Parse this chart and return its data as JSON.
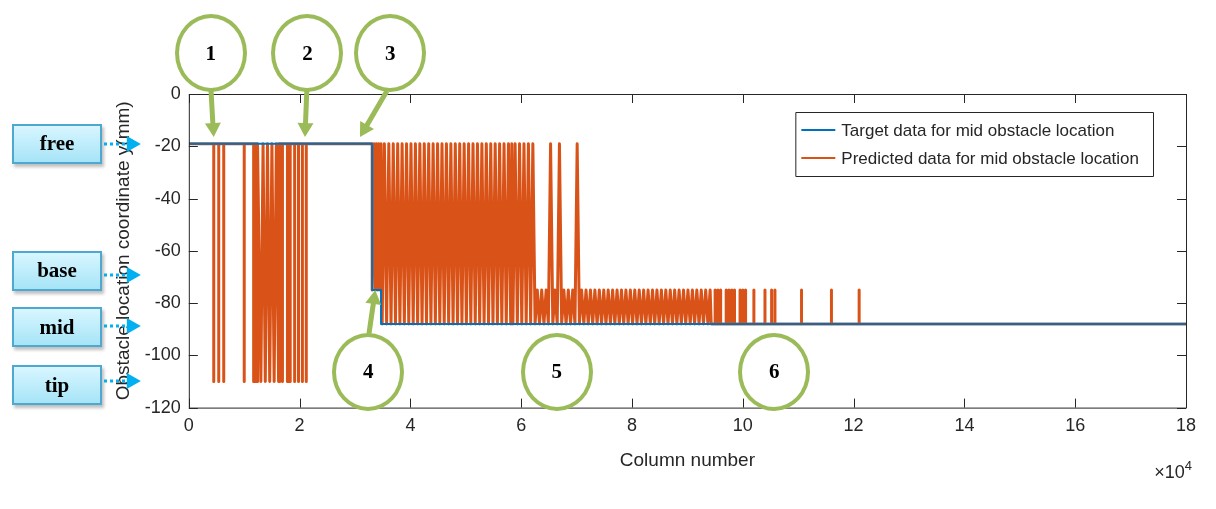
{
  "chart_data": {
    "type": "line",
    "xlabel": "Column number",
    "ylabel": "Obstacle location coordinate y(mm)",
    "xlim": [
      0,
      18
    ],
    "xticks": [
      0,
      2,
      4,
      6,
      8,
      10,
      12,
      14,
      16,
      18
    ],
    "ylim": [
      -120,
      0
    ],
    "yticks": [
      -120,
      -100,
      -80,
      -60,
      -40,
      -20,
      0
    ],
    "legend": "top right",
    "series": [
      {
        "name": "Target data for mid obstacle location",
        "color": "#0072bd",
        "x": [
          0,
          3.31,
          3.31,
          3.47,
          3.47,
          18
        ],
        "values": [
          -19,
          -19,
          -75,
          -75,
          -88,
          -88
        ]
      },
      {
        "name": "Predicted data for mid obstacle location",
        "color": "#d95319",
        "x": [
          0,
          0.45,
          0.45,
          0.45,
          0.54,
          0.54,
          0.54,
          0.63,
          0.63,
          0.63,
          1,
          1,
          1,
          1.17,
          1.17,
          1.17,
          1.2,
          1.2,
          1.2,
          1.24,
          1.24,
          1.24,
          1.3,
          1.34,
          1.38,
          1.42,
          1.46,
          1.5,
          1.54,
          1.58,
          1.62,
          1.62,
          1.64,
          1.64,
          1.64,
          1.69,
          1.69,
          1.69,
          1.78,
          1.78,
          1.78,
          1.81,
          1.81,
          1.81,
          1.83,
          1.83,
          1.83,
          1.91,
          1.91,
          1.91,
          1.98,
          1.98,
          1.98,
          2.05,
          2.05,
          2.05,
          2.12,
          2.12,
          2.12,
          3.31,
          3.31,
          3.35,
          3.37,
          3.39,
          3.41,
          3.43,
          3.45,
          3.47,
          3.49,
          3.53,
          3.57,
          3.61,
          3.65,
          3.69,
          3.73,
          3.77,
          3.81,
          3.85,
          3.89,
          3.93,
          3.97,
          4.01,
          4.05,
          4.09,
          4.13,
          4.17,
          4.21,
          4.25,
          4.29,
          4.33,
          4.37,
          4.41,
          4.45,
          4.49,
          4.53,
          4.57,
          4.61,
          4.65,
          4.69,
          4.73,
          4.77,
          4.81,
          4.85,
          4.89,
          4.93,
          4.97,
          5.01,
          5.05,
          5.09,
          5.13,
          5.17,
          5.21,
          5.25,
          5.29,
          5.33,
          5.37,
          5.41,
          5.45,
          5.49,
          5.53,
          5.57,
          5.61,
          5.65,
          5.69,
          5.73,
          5.77,
          5.81,
          5.83,
          5.85,
          5.89,
          5.93,
          5.97,
          6.01,
          6.05,
          6.09,
          6.13,
          6.17,
          6.21,
          6.25,
          6.29,
          6.33,
          6.37,
          6.41,
          6.45,
          6.49,
          6.53,
          6.57,
          6.61,
          6.65,
          6.69,
          6.73,
          6.77,
          6.81,
          6.85,
          6.89,
          6.93,
          6.97,
          7.01,
          7.05,
          7.09,
          7.13,
          7.17,
          7.21,
          7.25,
          7.29,
          7.33,
          7.37,
          7.41,
          7.45,
          7.49,
          7.53,
          7.57,
          7.61,
          7.65,
          7.69,
          7.73,
          7.77,
          7.81,
          7.85,
          7.89,
          7.93,
          7.97,
          8.01,
          8.05,
          8.09,
          8.13,
          8.17,
          8.21,
          8.25,
          8.29,
          8.33,
          8.37,
          8.41,
          8.45,
          8.49,
          8.53,
          8.57,
          8.61,
          8.65,
          8.69,
          8.73,
          8.77,
          8.81,
          8.85,
          8.89,
          8.93,
          8.97,
          9.01,
          9.05,
          9.09,
          9.13,
          9.17,
          9.21,
          9.25,
          9.29,
          9.33,
          9.37,
          9.41,
          9.43,
          9.5,
          9.5,
          9.5,
          9.55,
          9.55,
          9.55,
          9.6,
          9.6,
          9.6,
          9.7,
          9.7,
          9.7,
          9.75,
          9.75,
          9.75,
          9.8,
          9.8,
          9.8,
          9.85,
          9.85,
          9.85,
          9.95,
          9.95,
          9.95,
          10,
          10,
          10,
          10.05,
          10.05,
          10.05,
          10.2,
          10.2,
          10.2,
          10.4,
          10.4,
          10.4,
          10.52,
          10.52,
          10.52,
          10.58,
          10.58,
          10.58,
          11.06,
          11.06,
          11.06,
          11.6,
          11.6,
          11.6,
          12.1,
          12.1,
          12.1,
          18
        ],
        "values": [
          -19,
          -19,
          -110,
          -19,
          -19,
          -110,
          -19,
          -19,
          -110,
          -19,
          -19,
          -110,
          -19,
          -19,
          -110,
          -19,
          -19,
          -110,
          -19,
          -19,
          -110,
          -19,
          -110,
          -19,
          -110,
          -19,
          -110,
          -19,
          -110,
          -19,
          -110,
          -19,
          -19,
          -110,
          -19,
          -19,
          -110,
          -19,
          -19,
          -110,
          -19,
          -19,
          -110,
          -19,
          -19,
          -110,
          -19,
          -19,
          -110,
          -19,
          -19,
          -110,
          -19,
          -19,
          -110,
          -19,
          -19,
          -110,
          -19,
          -19,
          -75,
          -19,
          -75,
          -19,
          -75,
          -19,
          -75,
          -19,
          -88,
          -19,
          -88,
          -19,
          -88,
          -19,
          -88,
          -19,
          -88,
          -19,
          -88,
          -19,
          -88,
          -19,
          -88,
          -19,
          -88,
          -19,
          -88,
          -19,
          -88,
          -19,
          -88,
          -19,
          -88,
          -19,
          -88,
          -19,
          -88,
          -19,
          -88,
          -19,
          -88,
          -19,
          -88,
          -19,
          -88,
          -19,
          -88,
          -19,
          -88,
          -19,
          -88,
          -19,
          -88,
          -19,
          -88,
          -19,
          -88,
          -19,
          -88,
          -19,
          -88,
          -19,
          -88,
          -19,
          -88,
          -19,
          -88,
          -19,
          -88,
          -19,
          -88,
          -19,
          -88,
          -19,
          -88,
          -19,
          -88,
          -19,
          -88,
          -75,
          -88,
          -75,
          -88,
          -75,
          -88,
          -19,
          -88,
          -75,
          -88,
          -19,
          -88,
          -75,
          -88,
          -75,
          -88,
          -75,
          -88,
          -19,
          -88,
          -75,
          -88,
          -75,
          -88,
          -75,
          -88,
          -75,
          -88,
          -75,
          -88,
          -75,
          -88,
          -75,
          -88,
          -75,
          -88,
          -75,
          -88,
          -75,
          -88,
          -75,
          -88,
          -75,
          -88,
          -75,
          -88,
          -75,
          -88,
          -75,
          -88,
          -75,
          -88,
          -75,
          -88,
          -75,
          -88,
          -75,
          -88,
          -75,
          -88,
          -75,
          -88,
          -75,
          -88,
          -75,
          -88,
          -75,
          -88,
          -75,
          -88,
          -75,
          -88,
          -75,
          -88,
          -75,
          -88,
          -75,
          -88,
          -75,
          -88,
          -88,
          -75,
          -88,
          -88,
          -75,
          -88,
          -88,
          -75,
          -88,
          -88,
          -75,
          -88,
          -88,
          -75,
          -88,
          -88,
          -75,
          -88,
          -88,
          -75,
          -88,
          -88,
          -75,
          -88,
          -88,
          -75,
          -88,
          -88,
          -75,
          -88,
          -88,
          -75,
          -88,
          -88,
          -75,
          -88,
          -88,
          -75,
          -88,
          -88,
          -75,
          -88,
          -88,
          -75,
          -88,
          -88,
          -75,
          -88,
          -88,
          -75,
          -88,
          -88
        ]
      }
    ],
    "annotations": [
      "×10$^{4}$",
      "free",
      "base",
      "mid",
      "tip",
      "1",
      "2",
      "3",
      "4",
      "5",
      "6"
    ]
  }
}
